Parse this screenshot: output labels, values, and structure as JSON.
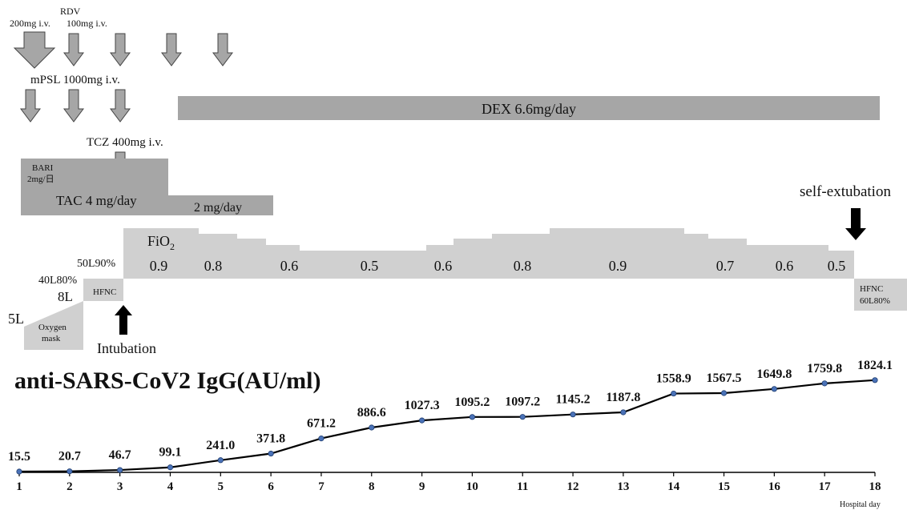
{
  "chart_data": {
    "type": "line",
    "title": "anti-SARS-CoV2 IgG(AU/ml)",
    "xlabel": "Hospital day",
    "ylabel": "",
    "x": [
      1,
      2,
      3,
      4,
      5,
      6,
      7,
      8,
      9,
      10,
      11,
      12,
      13,
      14,
      15,
      16,
      17,
      18
    ],
    "series": [
      {
        "values": [
          15.5,
          20.7,
          46.7,
          99.1,
          241.0,
          371.8,
          671.2,
          886.6,
          1027.3,
          1095.2,
          1097.2,
          1145.2,
          1187.8,
          1558.9,
          1567.5,
          1649.8,
          1759.8,
          1824.1
        ],
        "labels": [
          "15.5",
          "20.7",
          "46.7",
          "99.1",
          "241.0",
          "371.8",
          "671.2",
          "886.6",
          "1027.3",
          "1095.2",
          "1097.2",
          "1145.2",
          "1187.8",
          "1558.9",
          "1567.5",
          "1649.8",
          "1759.8",
          "1824.1"
        ]
      }
    ],
    "xlim": [
      1,
      18
    ],
    "ylim": [
      0,
      1900
    ],
    "line_color": "#000000",
    "marker_color": "#4a72b8"
  },
  "treatment": {
    "rdv_label": "RDV",
    "rdv_dose_first": "200mg i.v.",
    "rdv_dose_rest": "100mg i.v.",
    "mpsl_label": "mPSL 1000mg i.v.",
    "tcz_label": "TCZ 400mg i.v.",
    "dex_label": "DEX 6.6mg/day",
    "bari_label_1": "BARI",
    "bari_label_2": "2mg/日",
    "tac_label_1": "TAC 4 mg/day",
    "tac_label_2": "2 mg/day",
    "arrow_color": "#a6a6a6",
    "bar_dark": "#a6a6a6",
    "bar_light": "#d0d0d0"
  },
  "oxygen": {
    "o2_5l": "5L",
    "o2_8l": "8L",
    "o2_40l": "40L80%",
    "o2_50l": "50L90%",
    "oxygen_mask_1": "Oxygen",
    "oxygen_mask_2": "mask",
    "hfnc": "HFNC",
    "fio2_main": "FiO",
    "fio2_sub": "2",
    "fio2_values": [
      "0.9",
      "0.8",
      "0.6",
      "0.5",
      "0.6",
      "0.8",
      "0.9",
      "0.7",
      "0.6",
      "0.5"
    ],
    "intubation": "Intubation",
    "self_extubation": "self-extubation",
    "hfnc_end_1": "HFNC",
    "hfnc_end_2": "60L80%"
  }
}
